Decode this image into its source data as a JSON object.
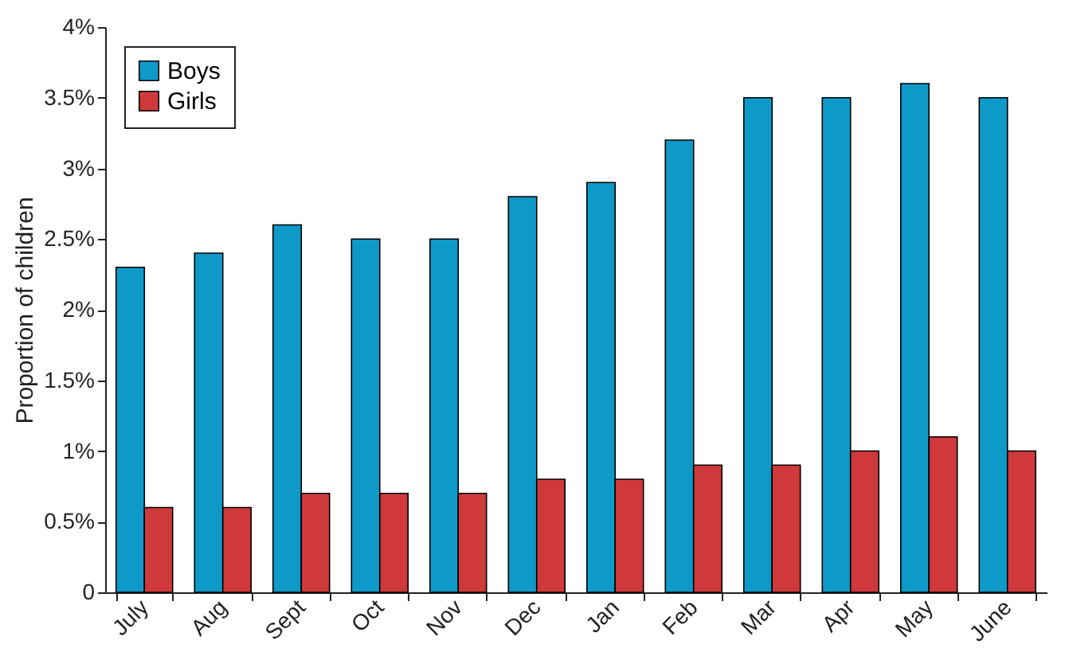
{
  "chart_data": {
    "type": "bar",
    "ylabel": "Proportion of children",
    "categories": [
      "July",
      "Aug",
      "Sept",
      "Oct",
      "Nov",
      "Dec",
      "Jan",
      "Feb",
      "Mar",
      "Apr",
      "May",
      "June"
    ],
    "series": [
      {
        "name": "Boys",
        "color": "#0e9ac8",
        "values": [
          2.3,
          2.4,
          2.6,
          2.5,
          2.5,
          2.8,
          2.9,
          3.2,
          3.5,
          3.5,
          3.6,
          3.5
        ]
      },
      {
        "name": "Girls",
        "color": "#d0393b",
        "values": [
          0.6,
          0.6,
          0.7,
          0.7,
          0.7,
          0.8,
          0.8,
          0.9,
          0.9,
          1.0,
          1.1,
          1.0
        ]
      }
    ],
    "ylim": [
      0,
      4
    ],
    "yticks": [
      {
        "value": 0,
        "label": "0"
      },
      {
        "value": 0.5,
        "label": "0.5%"
      },
      {
        "value": 1,
        "label": "1%"
      },
      {
        "value": 1.5,
        "label": "1.5%"
      },
      {
        "value": 2,
        "label": "2%"
      },
      {
        "value": 2.5,
        "label": "2.5%"
      },
      {
        "value": 3,
        "label": "3%"
      },
      {
        "value": 3.5,
        "label": "3.5%"
      },
      {
        "value": 4,
        "label": "4%"
      }
    ],
    "grid": false,
    "legend": "top left"
  }
}
